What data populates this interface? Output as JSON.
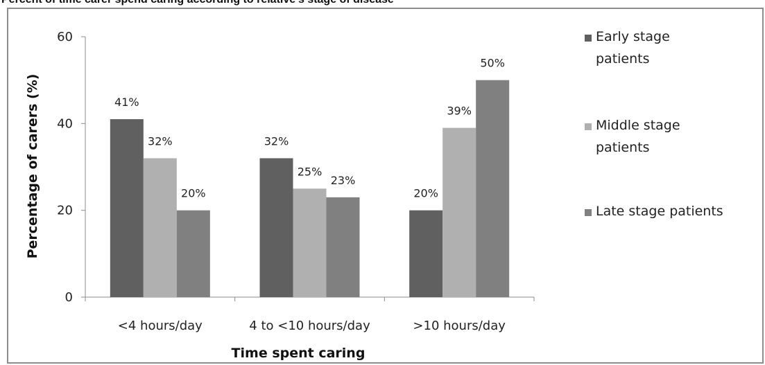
{
  "chart_data": {
    "type": "bar",
    "title": "Percent of time carer spend caring according to relative's stage of disease",
    "xlabel": "Time spent caring",
    "ylabel": "Percentage of carers (%)",
    "ylim": [
      0,
      60
    ],
    "yticks": [
      0,
      20,
      40,
      60
    ],
    "categories": [
      "<4 hours/day",
      "4 to <10 hours/day",
      ">10 hours/day"
    ],
    "series": [
      {
        "name": "Early stage patients",
        "legend_lines": [
          "Early stage",
          "patients"
        ],
        "color": "#606060",
        "values": [
          41,
          32,
          20
        ],
        "labels": [
          "41%",
          "32%",
          "20%"
        ]
      },
      {
        "name": "Middle stage patients",
        "legend_lines": [
          "Middle stage",
          "patients"
        ],
        "color": "#b0b0b0",
        "values": [
          32,
          25,
          39
        ],
        "labels": [
          "32%",
          "25%",
          "39%"
        ]
      },
      {
        "name": "Late stage patients",
        "legend_lines": [
          "Late stage patients"
        ],
        "color": "#808080",
        "values": [
          20,
          23,
          50
        ],
        "labels": [
          "20%",
          "23%",
          "50%"
        ]
      }
    ],
    "grid": false,
    "legend": "right"
  }
}
